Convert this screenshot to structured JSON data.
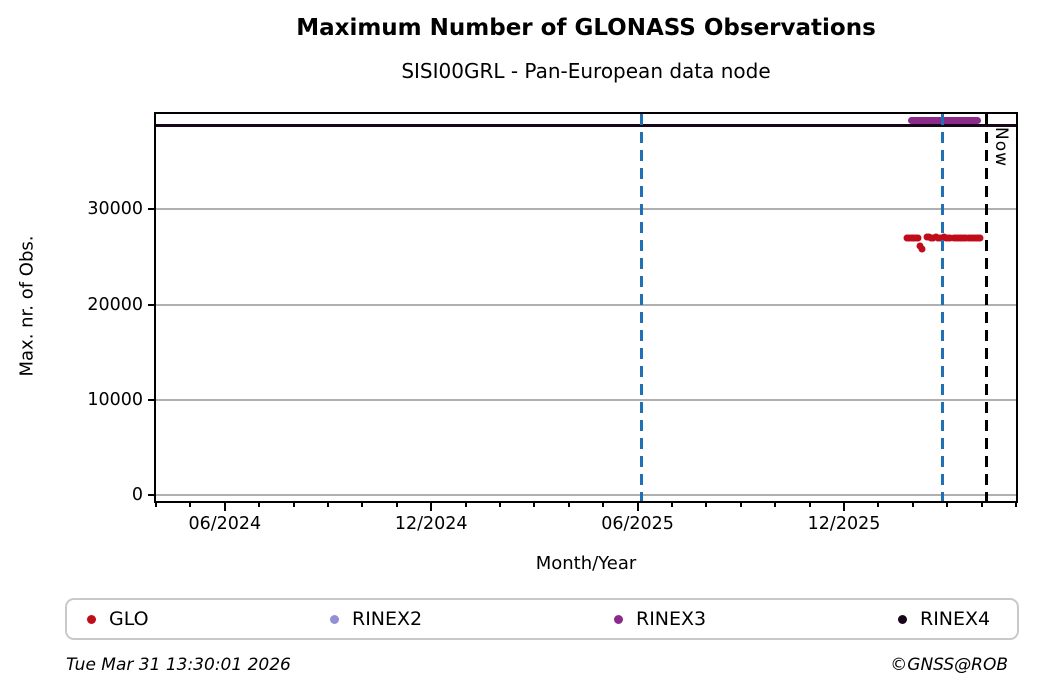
{
  "page": {
    "title": "Maximum Number of GLONASS Observations",
    "subtitle": "SISI00GRL - Pan-European data node"
  },
  "footer": {
    "timestamp": "Tue Mar 31 13:30:01 2026",
    "credit": "©GNSS@ROB"
  },
  "chart_data": {
    "type": "scatter",
    "title": "Maximum Number of GLONASS Observations",
    "subtitle": "SISI00GRL - Pan-European data node",
    "xlabel": "Month/Year",
    "ylabel": "Max. nr. of Obs.",
    "x_axis": {
      "unit": "month-index (0 = 2024-04, 25 = 2026-05)",
      "range": [
        0,
        25
      ],
      "minor_tick_every": 1,
      "major_ticks": [
        {
          "pos": 2,
          "label": "06/2024"
        },
        {
          "pos": 8,
          "label": "12/2024"
        },
        {
          "pos": 14,
          "label": "06/2025"
        },
        {
          "pos": 20,
          "label": "12/2025"
        }
      ]
    },
    "y_axis": {
      "range": [
        -600,
        40000
      ],
      "ticks": [
        {
          "value": 0,
          "label": "0"
        },
        {
          "value": 10000,
          "label": "10000"
        },
        {
          "value": 20000,
          "label": "20000"
        },
        {
          "value": 30000,
          "label": "30000"
        }
      ]
    },
    "grid": {
      "horizontal": true,
      "vertical": false,
      "color": "#b0b0b0"
    },
    "legend": {
      "position": "bottom",
      "items": [
        {
          "label": "GLO",
          "color": "#c00d1a"
        },
        {
          "label": "RINEX2",
          "color": "#9391d4"
        },
        {
          "label": "RINEX3",
          "color": "#8b2a8b"
        },
        {
          "label": "RINEX4",
          "color": "#17051a"
        }
      ]
    },
    "series": [
      {
        "name": "GLO",
        "type": "points",
        "color": "#c00d1a",
        "marker_px": 7,
        "points": [
          [
            21.82,
            26950
          ],
          [
            21.87,
            26980
          ],
          [
            21.92,
            27000
          ],
          [
            21.97,
            26960
          ],
          [
            22.02,
            27010
          ],
          [
            22.07,
            26990
          ],
          [
            22.12,
            26950
          ],
          [
            22.16,
            26970
          ],
          [
            22.2,
            26150
          ],
          [
            22.28,
            25850
          ],
          [
            22.42,
            27050
          ],
          [
            22.48,
            27080
          ],
          [
            22.54,
            27020
          ],
          [
            22.6,
            26980
          ],
          [
            22.66,
            27050
          ],
          [
            22.72,
            27000
          ],
          [
            22.78,
            26960
          ],
          [
            22.84,
            27030
          ],
          [
            22.9,
            27080
          ],
          [
            22.96,
            27010
          ],
          [
            23.02,
            26990
          ],
          [
            23.08,
            27040
          ],
          [
            23.2,
            26980
          ],
          [
            23.26,
            27010
          ],
          [
            23.32,
            26960
          ],
          [
            23.38,
            27000
          ],
          [
            23.44,
            27030
          ],
          [
            23.5,
            26980
          ],
          [
            23.56,
            27010
          ],
          [
            23.62,
            26990
          ],
          [
            23.68,
            27020
          ],
          [
            23.74,
            26970
          ],
          [
            23.8,
            27000
          ],
          [
            23.86,
            26980
          ],
          [
            23.92,
            27010
          ],
          [
            23.96,
            26990
          ]
        ]
      },
      {
        "name": "RINEX2",
        "type": "points",
        "color": "#9391d4",
        "marker_px": 7,
        "points": []
      },
      {
        "name": "RINEX3",
        "type": "segment",
        "color": "#8b2a8b",
        "thickness_px": 7,
        "rounded": true,
        "from": 21.85,
        "to": 23.97,
        "value": 39300
      },
      {
        "name": "RINEX4",
        "type": "segment",
        "color": "#17051a",
        "thickness_px": 3,
        "rounded": false,
        "from": 0,
        "to": 25,
        "value": 38800
      }
    ],
    "vlines": [
      {
        "name": "marker-vline-1",
        "pos": 14.12,
        "color": "#2070b4",
        "style": "dashed",
        "label": ""
      },
      {
        "name": "marker-vline-2",
        "pos": 22.86,
        "color": "#2070b4",
        "style": "dashed",
        "label": ""
      },
      {
        "name": "now-vline",
        "pos": 24.13,
        "color": "#000000",
        "style": "dashed",
        "label": "Now"
      }
    ]
  }
}
